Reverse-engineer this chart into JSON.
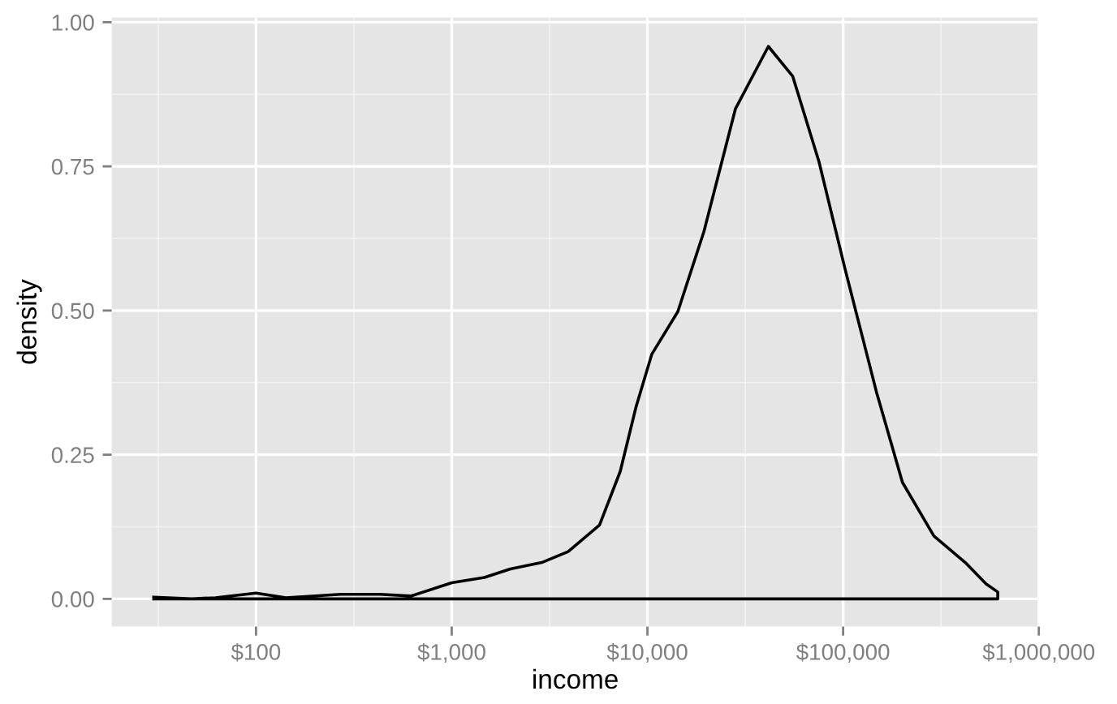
{
  "chart_data": {
    "type": "line",
    "xlabel": "income",
    "ylabel": "density",
    "log": "x",
    "xlim": [
      18.3,
      1000000
    ],
    "ylim": [
      -0.048,
      1.008
    ],
    "xticks": [
      {
        "value": 100,
        "label": "$100"
      },
      {
        "value": 1000,
        "label": "$1,000"
      },
      {
        "value": 10000,
        "label": "$10,000"
      },
      {
        "value": 100000,
        "label": "$100,000"
      },
      {
        "value": 1000000,
        "label": "$1,000,000"
      }
    ],
    "yticks": [
      {
        "value": 0,
        "label": "0.00"
      },
      {
        "value": 0.25,
        "label": "0.25"
      },
      {
        "value": 0.5,
        "label": "0.50"
      },
      {
        "value": 0.75,
        "label": "0.75"
      },
      {
        "value": 1,
        "label": "1.00"
      }
    ],
    "grid": true,
    "series": [
      {
        "color": "#000000",
        "x": [
          30,
          47,
          62,
          100,
          142,
          271,
          430,
          621,
          1000,
          1468,
          1995,
          2884,
          3935,
          5690,
          7262,
          8733,
          10520,
          14300,
          19440,
          28180,
          41500,
          55300,
          75300,
          102300,
          148000,
          201000,
          291000,
          421000,
          538000,
          617000,
          617000,
          30
        ],
        "values": [
          0.003,
          0.0,
          0.002,
          0.01,
          0.002,
          0.008,
          0.008,
          0.005,
          0.028,
          0.037,
          0.052,
          0.063,
          0.082,
          0.128,
          0.221,
          0.332,
          0.424,
          0.498,
          0.637,
          0.85,
          0.958,
          0.906,
          0.758,
          0.572,
          0.359,
          0.202,
          0.109,
          0.063,
          0.026,
          0.012,
          0.0,
          0.0
        ]
      }
    ]
  }
}
